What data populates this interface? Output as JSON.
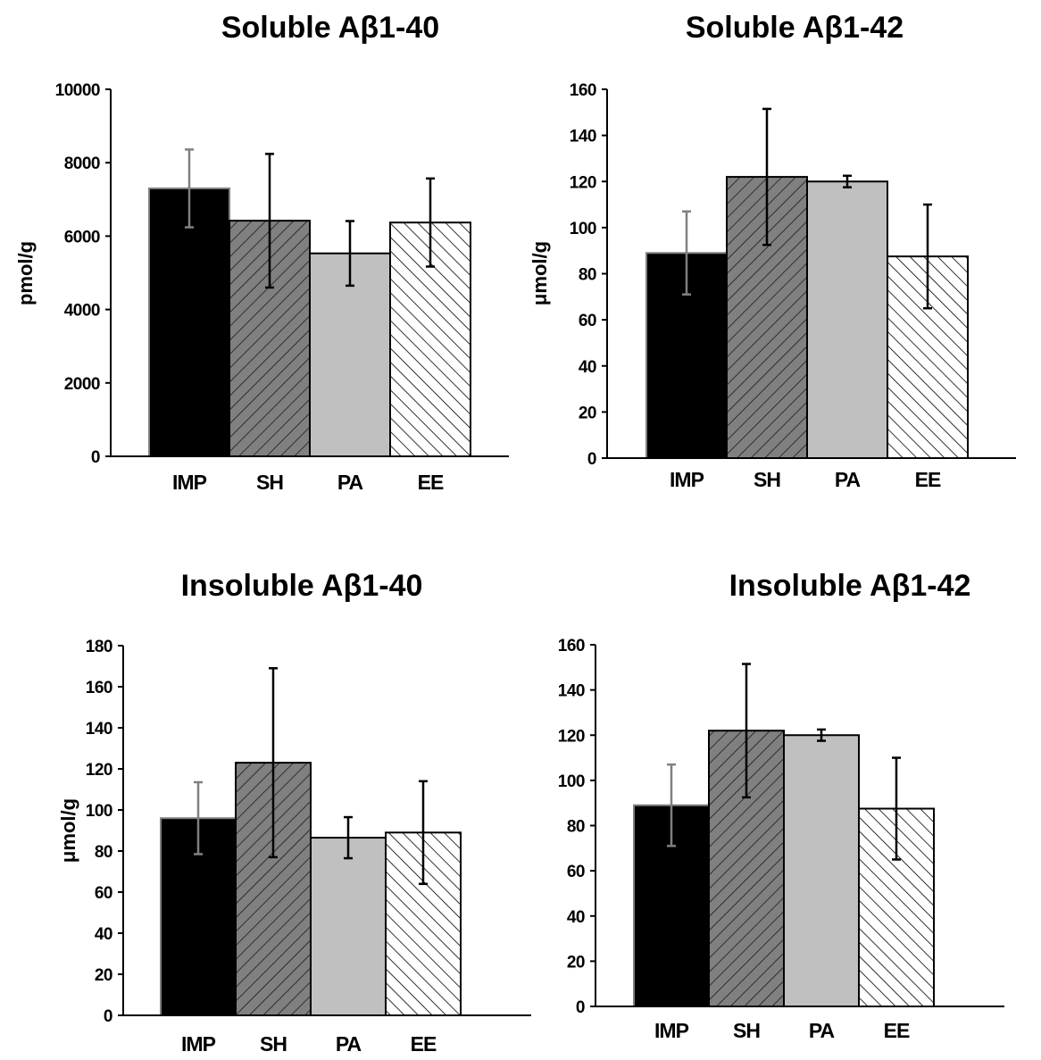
{
  "figure": {
    "charts": [
      {
        "title": "Soluble Aβ1-40",
        "ylabel": "pmol/g"
      },
      {
        "title": "Soluble Aβ1-42",
        "ylabel": "μmol/g"
      },
      {
        "title": "Insoluble Aβ1-40",
        "ylabel": "μmol/g"
      },
      {
        "title": "Insoluble Aβ1-42",
        "ylabel": ""
      }
    ]
  },
  "chart_data": [
    {
      "type": "bar",
      "title": "Soluble Aβ1-40",
      "xlabel": "",
      "ylabel": "pmol/g",
      "categories": [
        "IMP",
        "SH",
        "PA",
        "EE"
      ],
      "values": [
        7300,
        6420,
        5530,
        6370
      ],
      "errors": [
        1060,
        1820,
        880,
        1200
      ],
      "ylim": [
        0,
        10000
      ],
      "yticks": [
        0,
        2000,
        4000,
        6000,
        8000,
        10000
      ],
      "grid": false,
      "fills": [
        "solid-black",
        "hatch-dark-gray",
        "solid-light-gray",
        "hatch-white"
      ],
      "colors": {
        "black": "#000000",
        "dark_gray": "#808080",
        "light_gray": "#c0c0c0",
        "white": "#ffffff"
      }
    },
    {
      "type": "bar",
      "title": "Soluble Aβ1-42",
      "xlabel": "",
      "ylabel": "μmol/g",
      "categories": [
        "IMP",
        "SH",
        "PA",
        "EE"
      ],
      "values": [
        89,
        122,
        120,
        87.5
      ],
      "errors": [
        18,
        29.5,
        2.5,
        22.5
      ],
      "ylim": [
        0,
        160
      ],
      "yticks": [
        0,
        20,
        40,
        60,
        80,
        100,
        120,
        140,
        160
      ],
      "grid": false,
      "fills": [
        "solid-black",
        "hatch-dark-gray",
        "solid-light-gray",
        "hatch-white"
      ],
      "colors": {
        "black": "#000000",
        "dark_gray": "#808080",
        "light_gray": "#c0c0c0",
        "white": "#ffffff"
      }
    },
    {
      "type": "bar",
      "title": "Insoluble Aβ1-40",
      "xlabel": "",
      "ylabel": "μmol/g",
      "categories": [
        "IMP",
        "SH",
        "PA",
        "EE"
      ],
      "values": [
        96,
        123,
        86.5,
        89
      ],
      "errors": [
        17.5,
        46,
        10,
        25
      ],
      "ylim": [
        0,
        180
      ],
      "yticks": [
        0,
        20,
        40,
        60,
        80,
        100,
        120,
        140,
        160,
        180
      ],
      "grid": false,
      "fills": [
        "solid-black",
        "hatch-dark-gray",
        "solid-light-gray",
        "hatch-white"
      ],
      "colors": {
        "black": "#000000",
        "dark_gray": "#808080",
        "light_gray": "#c0c0c0",
        "white": "#ffffff"
      }
    },
    {
      "type": "bar",
      "title": "Insoluble Aβ1-42",
      "xlabel": "",
      "ylabel": "",
      "categories": [
        "IMP",
        "SH",
        "PA",
        "EE"
      ],
      "values": [
        89,
        122,
        120,
        87.5
      ],
      "errors": [
        18,
        29.5,
        2.5,
        22.5
      ],
      "ylim": [
        0,
        160
      ],
      "yticks": [
        0,
        20,
        40,
        60,
        80,
        100,
        120,
        140,
        160
      ],
      "grid": false,
      "fills": [
        "solid-black",
        "hatch-dark-gray",
        "solid-light-gray",
        "hatch-white"
      ],
      "colors": {
        "black": "#000000",
        "dark_gray": "#808080",
        "light_gray": "#c0c0c0",
        "white": "#ffffff"
      }
    }
  ]
}
